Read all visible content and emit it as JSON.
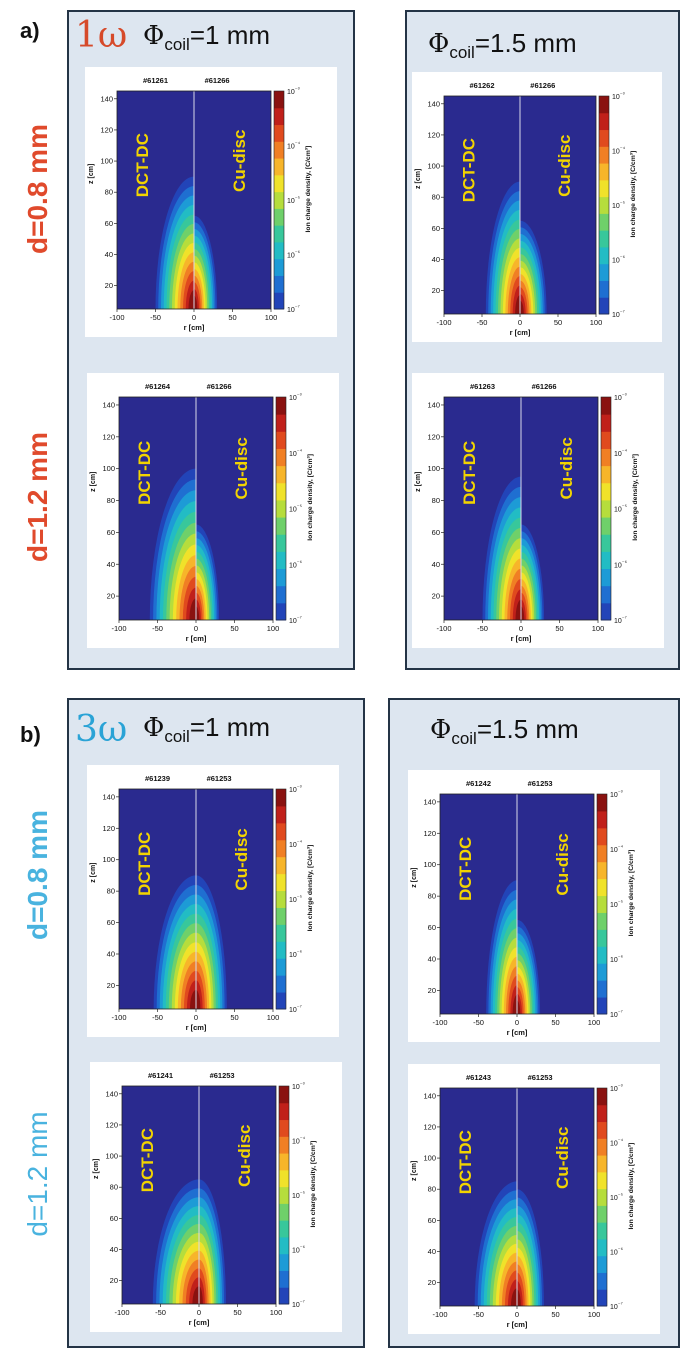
{
  "panels": [
    {
      "label": "a)",
      "harmonic": "1ω",
      "harmonic_color": "#d64a2a",
      "row_label_color": "#e04a2c",
      "columns": [
        {
          "phi_symbol": "Φ",
          "phi_sub": "coil",
          "phi_value": "=1 mm"
        },
        {
          "phi_symbol": "Φ",
          "phi_sub": "coil",
          "phi_value": "=1.5 mm"
        }
      ],
      "rows": [
        {
          "label": "d=0.8 mm"
        },
        {
          "label": "d=1.2 mm"
        }
      ]
    },
    {
      "label": "b)",
      "harmonic": "3ω",
      "harmonic_color": "#2aa3d6",
      "row_label_color": "#49b3df",
      "columns": [
        {
          "phi_symbol": "Φ",
          "phi_sub": "coil",
          "phi_value": "=1 mm"
        },
        {
          "phi_symbol": "Φ",
          "phi_sub": "coil",
          "phi_value": "=1.5 mm"
        }
      ],
      "rows": [
        {
          "label": "d=0.8 mm"
        },
        {
          "label": "d=1.2 mm"
        }
      ]
    }
  ],
  "chart_data": [
    {
      "type": "heatmap",
      "shot_left": "#61261",
      "shot_right": "#61266",
      "left_label": "DCT-DC",
      "right_label": "Cu-disc",
      "xlabel": "r [cm]",
      "ylabel": "z [cm]",
      "colorbar_label": "Ion charge density, [C/cm³]",
      "xlim": [
        -100,
        100
      ],
      "ylim": [
        5,
        145
      ],
      "xticks": [
        -100,
        -50,
        0,
        50,
        100
      ],
      "yticks": [
        20,
        40,
        60,
        80,
        100,
        120,
        140
      ],
      "cbar_ticks": [
        "10⁻³",
        "10⁻⁴",
        "10⁻⁵",
        "10⁻⁶",
        "10⁻⁷"
      ],
      "left_lobe": {
        "width_cm": 50,
        "height_cm": 85
      },
      "right_lobe": {
        "width_cm": 30,
        "height_cm": 60
      }
    },
    {
      "type": "heatmap",
      "shot_left": "#61262",
      "shot_right": "#61266",
      "left_label": "DCT-DC",
      "right_label": "Cu-disc",
      "xlabel": "r [cm]",
      "ylabel": "z [cm]",
      "colorbar_label": "Ion charge density, [C/cm³]",
      "xlim": [
        -100,
        100
      ],
      "ylim": [
        5,
        145
      ],
      "xticks": [
        -100,
        -50,
        0,
        50,
        100
      ],
      "yticks": [
        20,
        40,
        60,
        80,
        100,
        120,
        140
      ],
      "cbar_ticks": [
        "10⁻³",
        "10⁻⁴",
        "10⁻⁵",
        "10⁻⁶",
        "10⁻⁷"
      ],
      "left_lobe": {
        "width_cm": 45,
        "height_cm": 85
      },
      "right_lobe": {
        "width_cm": 35,
        "height_cm": 60
      }
    },
    {
      "type": "heatmap",
      "shot_left": "#61264",
      "shot_right": "#61266",
      "left_label": "DCT-DC",
      "right_label": "Cu-disc",
      "xlabel": "r [cm]",
      "ylabel": "z [cm]",
      "colorbar_label": "Ion charge density, [C/cm³]",
      "xlim": [
        -100,
        100
      ],
      "ylim": [
        5,
        145
      ],
      "xticks": [
        -100,
        -50,
        0,
        50,
        100
      ],
      "yticks": [
        20,
        40,
        60,
        80,
        100,
        120,
        140
      ],
      "cbar_ticks": [
        "10⁻³",
        "10⁻⁴",
        "10⁻⁵",
        "10⁻⁶",
        "10⁻⁷"
      ],
      "left_lobe": {
        "width_cm": 60,
        "height_cm": 95
      },
      "right_lobe": {
        "width_cm": 30,
        "height_cm": 60
      }
    },
    {
      "type": "heatmap",
      "shot_left": "#61263",
      "shot_right": "#61266",
      "left_label": "DCT-DC",
      "right_label": "Cu-disc",
      "xlabel": "r [cm]",
      "ylabel": "z [cm]",
      "colorbar_label": "Ion charge density, [C/cm³]",
      "xlim": [
        -100,
        100
      ],
      "ylim": [
        5,
        145
      ],
      "xticks": [
        -100,
        -50,
        0,
        50,
        100
      ],
      "yticks": [
        20,
        40,
        60,
        80,
        100,
        120,
        140
      ],
      "cbar_ticks": [
        "10⁻³",
        "10⁻⁴",
        "10⁻⁵",
        "10⁻⁶",
        "10⁻⁷"
      ],
      "left_lobe": {
        "width_cm": 50,
        "height_cm": 90
      },
      "right_lobe": {
        "width_cm": 30,
        "height_cm": 60
      }
    },
    {
      "type": "heatmap",
      "shot_left": "#61239",
      "shot_right": "#61253",
      "left_label": "DCT-DC",
      "right_label": "Cu-disc",
      "xlabel": "r [cm]",
      "ylabel": "z [cm]",
      "colorbar_label": "Ion charge density, [C/cm³]",
      "xlim": [
        -100,
        100
      ],
      "ylim": [
        5,
        145
      ],
      "xticks": [
        -100,
        -50,
        0,
        50,
        100
      ],
      "yticks": [
        20,
        40,
        60,
        80,
        100,
        120,
        140
      ],
      "cbar_ticks": [
        "10⁻³",
        "10⁻⁴",
        "10⁻⁵",
        "10⁻⁶",
        "10⁻⁷"
      ],
      "left_lobe": {
        "width_cm": 55,
        "height_cm": 85
      },
      "right_lobe": {
        "width_cm": 40,
        "height_cm": 85
      }
    },
    {
      "type": "heatmap",
      "shot_left": "#61242",
      "shot_right": "#61253",
      "left_label": "DCT-DC",
      "right_label": "Cu-disc",
      "xlabel": "r [cm]",
      "ylabel": "z [cm]",
      "colorbar_label": "Ion charge density, [C/cm³]",
      "xlim": [
        -100,
        100
      ],
      "ylim": [
        5,
        145
      ],
      "xticks": [
        -100,
        -50,
        0,
        50,
        100
      ],
      "yticks": [
        20,
        40,
        60,
        80,
        100,
        120,
        140
      ],
      "cbar_ticks": [
        "10⁻³",
        "10⁻⁴",
        "10⁻⁵",
        "10⁻⁶",
        "10⁻⁷"
      ],
      "left_lobe": {
        "width_cm": 40,
        "height_cm": 85
      },
      "right_lobe": {
        "width_cm": 30,
        "height_cm": 60
      }
    },
    {
      "type": "heatmap",
      "shot_left": "#61241",
      "shot_right": "#61253",
      "left_label": "DCT-DC",
      "right_label": "Cu-disc",
      "xlabel": "r [cm]",
      "ylabel": "z [cm]",
      "colorbar_label": "Ion charge density, [C/cm³]",
      "xlim": [
        -100,
        100
      ],
      "ylim": [
        5,
        145
      ],
      "xticks": [
        -100,
        -50,
        0,
        50,
        100
      ],
      "yticks": [
        20,
        40,
        60,
        80,
        100,
        120,
        140
      ],
      "cbar_ticks": [
        "10⁻³",
        "10⁻⁴",
        "10⁻⁵",
        "10⁻⁶",
        "10⁻⁷"
      ],
      "left_lobe": {
        "width_cm": 60,
        "height_cm": 80
      },
      "right_lobe": {
        "width_cm": 35,
        "height_cm": 80
      }
    },
    {
      "type": "heatmap",
      "shot_left": "#61243",
      "shot_right": "#61253",
      "left_label": "DCT-DC",
      "right_label": "Cu-disc",
      "xlabel": "r [cm]",
      "ylabel": "z [cm]",
      "colorbar_label": "Ion charge density, [C/cm³]",
      "xlim": [
        -100,
        100
      ],
      "ylim": [
        5,
        145
      ],
      "xticks": [
        -100,
        -50,
        0,
        50,
        100
      ],
      "yticks": [
        20,
        40,
        60,
        80,
        100,
        120,
        140
      ],
      "cbar_ticks": [
        "10⁻³",
        "10⁻⁴",
        "10⁻⁵",
        "10⁻⁶",
        "10⁻⁷"
      ],
      "left_lobe": {
        "width_cm": 55,
        "height_cm": 80
      },
      "right_lobe": {
        "width_cm": 35,
        "height_cm": 75
      }
    }
  ]
}
